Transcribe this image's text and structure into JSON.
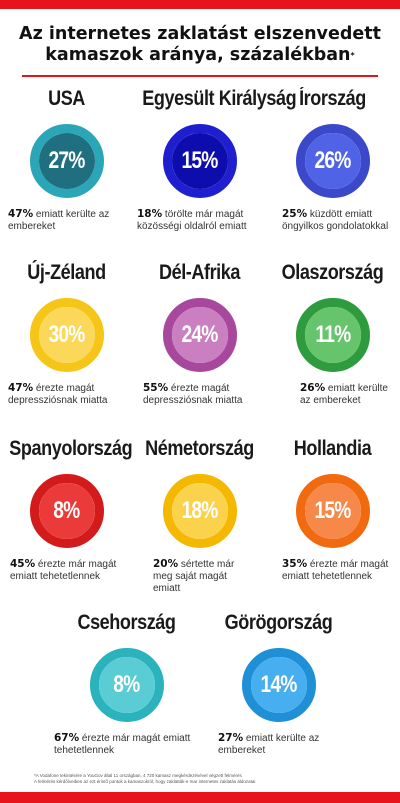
{
  "title": {
    "line1": "Az internetes zaklatást elszenvedett",
    "line2": "kamaszok aránya, százalékban",
    "mark": "*"
  },
  "accent_color": "#e8141c",
  "countries": [
    {
      "name": "USA",
      "value": "27%",
      "ring": "#2aa6b6",
      "fill": "#1f6f80",
      "stat": "47%",
      "text": "emiatt kerülte az embereket"
    },
    {
      "name": "Egyesült Királyság",
      "value": "15%",
      "ring": "#1f1fd0",
      "fill": "#0d0dae",
      "stat": "18%",
      "text": "törölte már magát közösségi oldalról emiatt"
    },
    {
      "name": "Írország",
      "value": "26%",
      "ring": "#3a48c9",
      "fill": "#5062e6",
      "stat": "25%",
      "text": "küzdött emiatt öngyilkos gondolatokkal"
    },
    {
      "name": "Új-Zéland",
      "value": "30%",
      "ring": "#f5c518",
      "fill": "#fbd75a",
      "stat": "47%",
      "text": "érezte magát depressziósnak miatta"
    },
    {
      "name": "Dél-Afrika",
      "value": "24%",
      "ring": "#a8489d",
      "fill": "#c97fc0",
      "stat": "55%",
      "text": "érezte magát depressziósnak miatta"
    },
    {
      "name": "Olaszország",
      "value": "11%",
      "ring": "#2e9b3e",
      "fill": "#66c46c",
      "stat": "26%",
      "text": "emiatt kerülte az embereket"
    },
    {
      "name": "Spanyolország",
      "value": "8%",
      "ring": "#d41b1b",
      "fill": "#ea3a3a",
      "stat": "45%",
      "text": "érezte már magát emiatt tehetetlennek"
    },
    {
      "name": "Németország",
      "value": "18%",
      "ring": "#f4b800",
      "fill": "#fbd24c",
      "stat": "20%",
      "text": "sértette már meg saját magát emiatt"
    },
    {
      "name": "Hollandia",
      "value": "15%",
      "ring": "#f26a10",
      "fill": "#f6894a",
      "stat": "35%",
      "text": "érezte már magát emiatt tehetetlennek"
    },
    {
      "name": "Csehország",
      "value": "8%",
      "ring": "#2ab2bd",
      "fill": "#59ccd4",
      "stat": "67%",
      "text": "érezte már magát emiatt tehetetlennek"
    },
    {
      "name": "Görögország",
      "value": "14%",
      "ring": "#1f8fd6",
      "fill": "#47aef0",
      "stat": "27%",
      "text": "emiatt kerülte az embereket"
    }
  ],
  "footnote": {
    "line1": "*A Vodafone tekintésére a YouGov által 11 országban, 4 720 kamasz megkérdezésével végzett felmérés",
    "line2": "A felmérés kérdőíveiben az ezt érintő pontok a kamaszokról, hogy zaklatták-e mar internetes zaklatás áldozatai"
  }
}
